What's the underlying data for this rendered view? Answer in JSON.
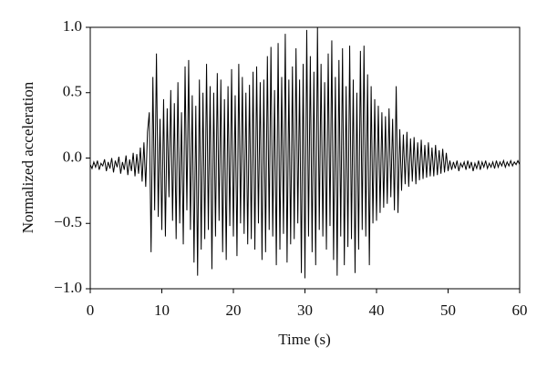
{
  "chart_data": {
    "type": "line",
    "x_label": "Time (s)",
    "y_label": "Normalized acceleration",
    "xlim": [
      0,
      60
    ],
    "ylim": [
      -1.0,
      1.0
    ],
    "xticks": [
      0,
      10,
      20,
      30,
      40,
      50,
      60
    ],
    "yticks": [
      {
        "value": -1.0,
        "label": "−1.0"
      },
      {
        "value": -0.5,
        "label": "−0.5"
      },
      {
        "value": 0.0,
        "label": "0.0"
      },
      0.5,
      {
        "value": 1.0,
        "label": "1.0"
      }
    ],
    "series": [
      {
        "color": "#000000",
        "x": [
          0,
          0.25,
          0.5,
          0.75,
          1,
          1.25,
          1.5,
          1.75,
          2,
          2.25,
          2.5,
          2.75,
          3,
          3.25,
          3.5,
          3.75,
          4,
          4.25,
          4.5,
          4.75,
          5,
          5.25,
          5.5,
          5.75,
          6,
          6.25,
          6.5,
          6.75,
          7,
          7.25,
          7.5,
          7.75,
          8,
          8.25,
          8.5,
          8.75,
          9,
          9.25,
          9.5,
          9.75,
          10,
          10.25,
          10.5,
          10.75,
          11,
          11.25,
          11.5,
          11.75,
          12,
          12.25,
          12.5,
          12.75,
          13,
          13.25,
          13.5,
          13.75,
          14,
          14.25,
          14.5,
          14.75,
          15,
          15.25,
          15.5,
          15.75,
          16,
          16.25,
          16.5,
          16.75,
          17,
          17.25,
          17.5,
          17.75,
          18,
          18.25,
          18.5,
          18.75,
          19,
          19.25,
          19.5,
          19.75,
          20,
          20.25,
          20.5,
          20.75,
          21,
          21.25,
          21.5,
          21.75,
          22,
          22.25,
          22.5,
          22.75,
          23,
          23.25,
          23.5,
          23.75,
          24,
          24.25,
          24.5,
          24.75,
          25,
          25.25,
          25.5,
          25.75,
          26,
          26.25,
          26.5,
          26.75,
          27,
          27.25,
          27.5,
          27.75,
          28,
          28.25,
          28.5,
          28.75,
          29,
          29.25,
          29.5,
          29.75,
          30,
          30.25,
          30.5,
          30.75,
          31,
          31.25,
          31.5,
          31.75,
          32,
          32.25,
          32.5,
          32.75,
          33,
          33.25,
          33.5,
          33.75,
          34,
          34.25,
          34.5,
          34.75,
          35,
          35.25,
          35.5,
          35.75,
          36,
          36.25,
          36.5,
          36.75,
          37,
          37.25,
          37.5,
          37.75,
          38,
          38.25,
          38.5,
          38.75,
          39,
          39.25,
          39.5,
          39.75,
          40,
          40.25,
          40.5,
          40.75,
          41,
          41.25,
          41.5,
          41.75,
          42,
          42.25,
          42.5,
          42.75,
          43,
          43.25,
          43.5,
          43.75,
          44,
          44.25,
          44.5,
          44.75,
          45,
          45.25,
          45.5,
          45.75,
          46,
          46.25,
          46.5,
          46.75,
          47,
          47.25,
          47.5,
          47.75,
          48,
          48.25,
          48.5,
          48.75,
          49,
          49.25,
          49.5,
          49.75,
          50,
          50.25,
          50.5,
          50.75,
          51,
          51.25,
          51.5,
          51.75,
          52,
          52.25,
          52.5,
          52.75,
          53,
          53.25,
          53.5,
          53.75,
          54,
          54.25,
          54.5,
          54.75,
          55,
          55.25,
          55.5,
          55.75,
          56,
          56.25,
          56.5,
          56.75,
          57,
          57.25,
          57.5,
          57.75,
          58,
          58.25,
          58.5,
          58.75,
          59,
          59.25,
          59.5,
          59.75,
          60
        ],
        "values": [
          -0.05,
          -0.08,
          -0.03,
          -0.07,
          -0.02,
          -0.09,
          -0.04,
          -0.06,
          -0.01,
          -0.1,
          -0.03,
          -0.08,
          0.0,
          -0.11,
          -0.02,
          -0.07,
          0.01,
          -0.12,
          -0.03,
          -0.09,
          0.02,
          -0.13,
          -0.01,
          -0.1,
          0.04,
          -0.14,
          0.03,
          -0.12,
          0.08,
          -0.18,
          0.12,
          -0.22,
          0.2,
          0.35,
          -0.72,
          0.62,
          -0.4,
          0.8,
          -0.45,
          0.3,
          -0.55,
          0.45,
          -0.6,
          0.38,
          -0.3,
          0.52,
          -0.48,
          0.42,
          -0.62,
          0.58,
          -0.5,
          0.35,
          -0.66,
          0.7,
          -0.4,
          0.75,
          -0.55,
          0.48,
          -0.8,
          0.4,
          -0.9,
          0.6,
          -0.7,
          0.5,
          -0.62,
          0.72,
          -0.55,
          0.55,
          -0.85,
          0.5,
          -0.6,
          0.65,
          -0.48,
          0.6,
          -0.72,
          0.45,
          -0.78,
          0.55,
          -0.52,
          0.68,
          -0.6,
          0.48,
          -0.75,
          0.72,
          -0.5,
          0.62,
          -0.58,
          0.5,
          -0.66,
          0.56,
          -0.62,
          0.66,
          -0.7,
          0.7,
          -0.5,
          0.58,
          -0.78,
          0.6,
          -0.72,
          0.78,
          -0.55,
          0.85,
          -0.6,
          0.52,
          -0.82,
          0.88,
          -0.7,
          0.62,
          -0.58,
          0.95,
          -0.8,
          0.6,
          -0.66,
          0.7,
          -0.62,
          0.84,
          -0.5,
          0.6,
          -0.88,
          0.72,
          -0.92,
          0.98,
          -0.6,
          0.78,
          -0.72,
          0.66,
          -0.82,
          1.0,
          -0.55,
          0.72,
          -0.6,
          0.58,
          -0.7,
          0.8,
          -0.52,
          0.9,
          -0.78,
          0.62,
          -0.9,
          0.75,
          -0.6,
          0.84,
          -0.82,
          0.55,
          -0.68,
          0.86,
          -0.62,
          0.6,
          -0.88,
          0.5,
          -0.7,
          0.82,
          -0.55,
          0.86,
          -0.6,
          0.64,
          -0.82,
          0.55,
          -0.5,
          0.45,
          -0.48,
          0.4,
          -0.42,
          0.35,
          -0.38,
          0.32,
          -0.35,
          0.38,
          -0.3,
          0.3,
          -0.4,
          0.55,
          -0.42,
          0.22,
          -0.25,
          0.18,
          -0.2,
          0.2,
          -0.22,
          0.15,
          -0.18,
          0.16,
          -0.2,
          0.12,
          -0.17,
          0.14,
          -0.16,
          0.1,
          -0.15,
          0.12,
          -0.14,
          0.08,
          -0.14,
          0.1,
          -0.13,
          0.06,
          -0.12,
          0.07,
          -0.11,
          0.04,
          -0.1,
          -0.02,
          -0.09,
          -0.03,
          -0.08,
          -0.02,
          -0.1,
          -0.04,
          -0.07,
          -0.03,
          -0.09,
          -0.02,
          -0.08,
          -0.03,
          -0.1,
          -0.04,
          -0.08,
          -0.02,
          -0.09,
          -0.03,
          -0.07,
          -0.02,
          -0.08,
          -0.04,
          -0.07,
          -0.03,
          -0.08,
          -0.02,
          -0.07,
          -0.03,
          -0.06,
          -0.02,
          -0.07,
          -0.03,
          -0.06,
          -0.02,
          -0.06,
          -0.03,
          -0.05,
          -0.02,
          -0.05
        ]
      }
    ]
  }
}
